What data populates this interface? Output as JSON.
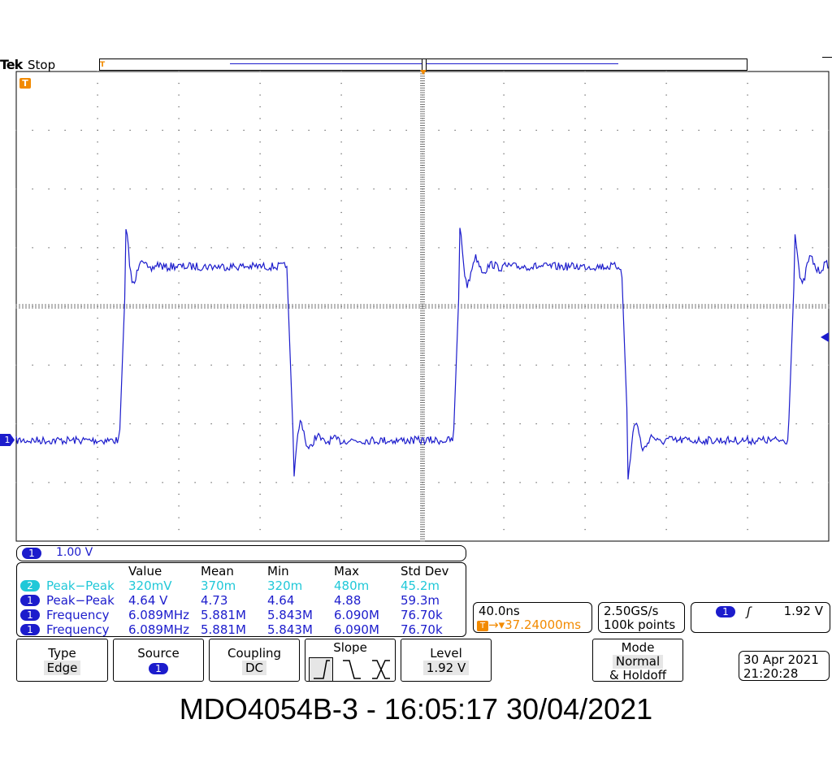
{
  "header": {
    "brand": "Tek",
    "acq_status": "Stop"
  },
  "markers": {
    "trigger_label": "T",
    "channel_label": "1"
  },
  "channel": {
    "number": "1",
    "scale": "1.00 V",
    "color": "#1c1ccc"
  },
  "measurements": {
    "headers": [
      "Value",
      "Mean",
      "Min",
      "Max",
      "Std Dev"
    ],
    "rows": [
      {
        "ch": "2",
        "color": "cyan",
        "name": "Peak−Peak",
        "value": "320mV",
        "mean": "370m",
        "min": "320m",
        "max": "480m",
        "std": "45.2m"
      },
      {
        "ch": "1",
        "color": "blue",
        "name": "Peak−Peak",
        "value": "4.64 V",
        "mean": "4.73",
        "min": "4.64",
        "max": "4.88",
        "std": "59.3m"
      },
      {
        "ch": "1",
        "color": "blue",
        "name": "Frequency",
        "value": "6.089MHz",
        "mean": "5.881M",
        "min": "5.843M",
        "max": "6.090M",
        "std": "76.70k"
      },
      {
        "ch": "1",
        "color": "blue",
        "name": "Frequency",
        "value": "6.089MHz",
        "mean": "5.881M",
        "min": "5.843M",
        "max": "6.090M",
        "std": "76.70k"
      }
    ]
  },
  "timebase": {
    "scale": "40.0ns",
    "position": "37.24000ms",
    "position_prefix": "T",
    "arrow": "→▾"
  },
  "acquisition": {
    "sample_rate": "2.50GS/s",
    "record_length": "100k points"
  },
  "trigger": {
    "source": "1",
    "slope_symbol": "ʃ",
    "level": "1.92 V"
  },
  "buttons": {
    "type_label": "Type",
    "type_value": "Edge",
    "source_label": "Source",
    "source_value": "1",
    "coupling_label": "Coupling",
    "coupling_value": "DC",
    "slope_label": "Slope",
    "level_label": "Level",
    "level_value": "1.92 V",
    "mode_label": "Mode",
    "mode_value": "Normal",
    "mode_value2": "& Holdoff"
  },
  "clock": {
    "date": "30 Apr  2021",
    "time": "21:20:28"
  },
  "caption": "MDO4054B-3 - 16:05:17   30/04/2021",
  "colors": {
    "trace": "#1c1ccc",
    "trigger": "#f28a00",
    "ch2": "#20c8d8"
  }
}
